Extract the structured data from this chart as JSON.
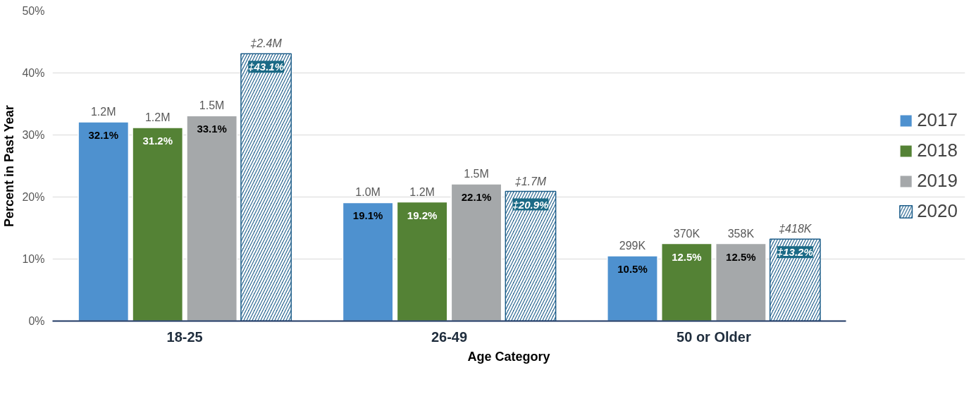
{
  "chart_data": {
    "type": "bar",
    "xlabel": "Age Category",
    "ylabel": "Percent in Past Year",
    "categories": [
      "18-25",
      "26-49",
      "50 or Older"
    ],
    "series": [
      {
        "name": "2017",
        "color": "#4e91cf",
        "values": [
          32.1,
          19.1,
          10.5
        ],
        "value_labels": [
          "32.1%",
          "19.1%",
          "10.5%"
        ]
      },
      {
        "name": "2018",
        "color": "#548235",
        "values": [
          31.2,
          19.2,
          12.5
        ],
        "value_labels": [
          "31.2%",
          "19.2%",
          "12.5%"
        ]
      },
      {
        "name": "2019",
        "color": "#a5a8aa",
        "values": [
          33.1,
          22.1,
          12.5
        ],
        "value_labels": [
          "33.1%",
          "22.1%",
          "12.5%"
        ]
      },
      {
        "name": "2020",
        "color": "#1f5f8b",
        "values": [
          43.1,
          20.9,
          13.2
        ],
        "value_labels": [
          "‡43.1%",
          "‡20.9%",
          "‡13.2%"
        ]
      }
    ],
    "ylim": [
      0,
      50
    ],
    "yticks": [
      {
        "value": 0,
        "label": "0%"
      },
      {
        "value": 10,
        "label": "10%"
      },
      {
        "value": 20,
        "label": "20%"
      },
      {
        "value": 30,
        "label": "30%"
      },
      {
        "value": 40,
        "label": "40%"
      },
      {
        "value": 50,
        "label": "50%"
      }
    ],
    "grid": "y",
    "legend": "right",
    "annotations": [
      "1.2M",
      "1.2M",
      "1.5M",
      "‡2.4M",
      "1.0M",
      "1.2M",
      "1.5M",
      "‡1.7M",
      "299K",
      "370K",
      "358K",
      "‡418K"
    ]
  }
}
